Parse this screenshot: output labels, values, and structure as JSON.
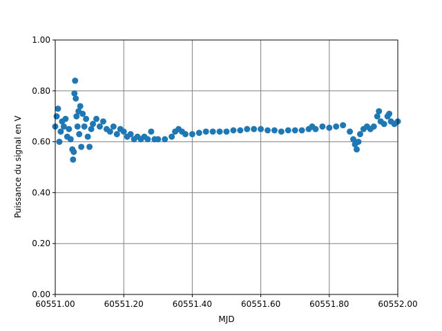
{
  "chart_data": {
    "type": "scatter",
    "xlabel": "MJD",
    "ylabel": "Puissance du signal en V",
    "color": "#1f77b4",
    "grid": true,
    "xlim": [
      60551.0,
      60552.0
    ],
    "xticks": [
      {
        "value": 60551.0,
        "label": "60551.00"
      },
      {
        "value": 60551.2,
        "label": "60551.20"
      },
      {
        "value": 60551.4,
        "label": "60551.40"
      },
      {
        "value": 60551.6,
        "label": "60551.60"
      },
      {
        "value": 60551.8,
        "label": "60551.80"
      },
      {
        "value": 60552.0,
        "label": "60552.00"
      }
    ],
    "ylim": [
      0,
      1
    ],
    "yticks": [
      {
        "value": 0,
        "label": "0.00"
      },
      {
        "value": 0.2,
        "label": "0.20"
      },
      {
        "value": 0.4,
        "label": "0.40"
      },
      {
        "value": 0.6,
        "label": "0.60"
      },
      {
        "value": 0.8,
        "label": "0.80"
      },
      {
        "value": 1,
        "label": "1.00"
      }
    ],
    "x": [
      60551.0,
      60551.004,
      60551.008,
      60551.012,
      60551.016,
      60551.02,
      60551.025,
      60551.03,
      60551.035,
      60551.04,
      60551.045,
      60551.05,
      60551.052,
      60551.054,
      60551.056,
      60551.058,
      60551.06,
      60551.062,
      60551.065,
      60551.068,
      60551.07,
      60551.073,
      60551.076,
      60551.08,
      60551.085,
      60551.09,
      60551.095,
      60551.1,
      60551.105,
      60551.11,
      60551.12,
      60551.13,
      60551.14,
      60551.15,
      60551.16,
      60551.17,
      60551.18,
      60551.19,
      60551.2,
      60551.21,
      60551.22,
      60551.23,
      60551.24,
      60551.25,
      60551.26,
      60551.27,
      60551.28,
      60551.29,
      60551.3,
      60551.32,
      60551.34,
      60551.35,
      60551.36,
      60551.37,
      60551.38,
      60551.4,
      60551.42,
      60551.44,
      60551.46,
      60551.48,
      60551.5,
      60551.52,
      60551.54,
      60551.56,
      60551.58,
      60551.6,
      60551.62,
      60551.64,
      60551.66,
      60551.68,
      60551.7,
      60551.72,
      60551.74,
      60551.75,
      60551.76,
      60551.78,
      60551.8,
      60551.82,
      60551.84,
      60551.86,
      60551.87,
      60551.875,
      60551.88,
      60551.885,
      60551.89,
      60551.9,
      60551.91,
      60551.92,
      60551.93,
      60551.94,
      60551.945,
      60551.95,
      60551.96,
      60551.97,
      60551.975,
      60551.98,
      60551.99,
      60552.0
    ],
    "values": [
      0.66,
      0.7,
      0.73,
      0.6,
      0.64,
      0.68,
      0.66,
      0.69,
      0.62,
      0.65,
      0.61,
      0.57,
      0.53,
      0.56,
      0.79,
      0.84,
      0.77,
      0.7,
      0.66,
      0.72,
      0.63,
      0.74,
      0.58,
      0.71,
      0.66,
      0.69,
      0.62,
      0.58,
      0.65,
      0.67,
      0.69,
      0.66,
      0.68,
      0.65,
      0.64,
      0.66,
      0.63,
      0.65,
      0.64,
      0.62,
      0.63,
      0.61,
      0.62,
      0.61,
      0.62,
      0.61,
      0.64,
      0.61,
      0.61,
      0.61,
      0.62,
      0.64,
      0.65,
      0.64,
      0.63,
      0.63,
      0.635,
      0.64,
      0.64,
      0.64,
      0.64,
      0.645,
      0.645,
      0.65,
      0.65,
      0.65,
      0.645,
      0.645,
      0.64,
      0.645,
      0.645,
      0.645,
      0.65,
      0.66,
      0.65,
      0.66,
      0.655,
      0.66,
      0.665,
      0.64,
      0.61,
      0.59,
      0.57,
      0.6,
      0.63,
      0.65,
      0.66,
      0.65,
      0.66,
      0.7,
      0.72,
      0.68,
      0.67,
      0.7,
      0.71,
      0.68,
      0.67,
      0.68
    ]
  }
}
